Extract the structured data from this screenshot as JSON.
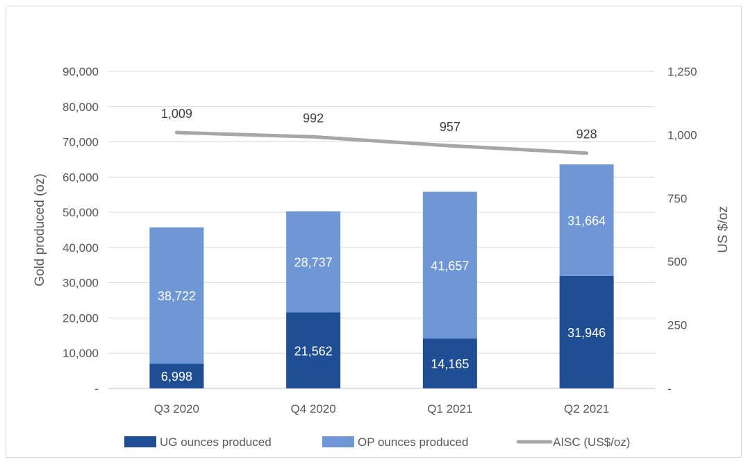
{
  "chart_data": {
    "type": "bar",
    "stacked": true,
    "categories": [
      "Q3 2020",
      "Q4 2020",
      "Q1 2021",
      "Q2 2021"
    ],
    "series": [
      {
        "name": "UG ounces produced",
        "values": [
          6998,
          21562,
          14165,
          31946
        ],
        "labels": [
          "6,998",
          "21,562",
          "14,165",
          "31,946"
        ],
        "color": "#1f4e95",
        "axis": "left"
      },
      {
        "name": "OP ounces produced",
        "values": [
          38722,
          28737,
          41657,
          31664
        ],
        "labels": [
          "38,722",
          "28,737",
          "41,657",
          "31,664"
        ],
        "color": "#6f97d6",
        "axis": "left"
      },
      {
        "name": "AISC (US$/oz)",
        "type": "line",
        "values": [
          1009,
          992,
          957,
          928
        ],
        "labels": [
          "1,009",
          "992",
          "957",
          "928"
        ],
        "color": "#a6a6a6",
        "axis": "right"
      }
    ],
    "ylabel": "Gold produced (oz)",
    "y2label": "US $/oz",
    "ylim": [
      0,
      90000
    ],
    "y2lim": [
      0,
      1250
    ],
    "yticks": [
      "-",
      "10,000",
      "20,000",
      "30,000",
      "40,000",
      "50,000",
      "60,000",
      "70,000",
      "80,000",
      "90,000"
    ],
    "y2ticks": [
      "-",
      "250",
      "500",
      "750",
      "1,000",
      "1,250"
    ],
    "grid": true,
    "legend": "bottom"
  }
}
